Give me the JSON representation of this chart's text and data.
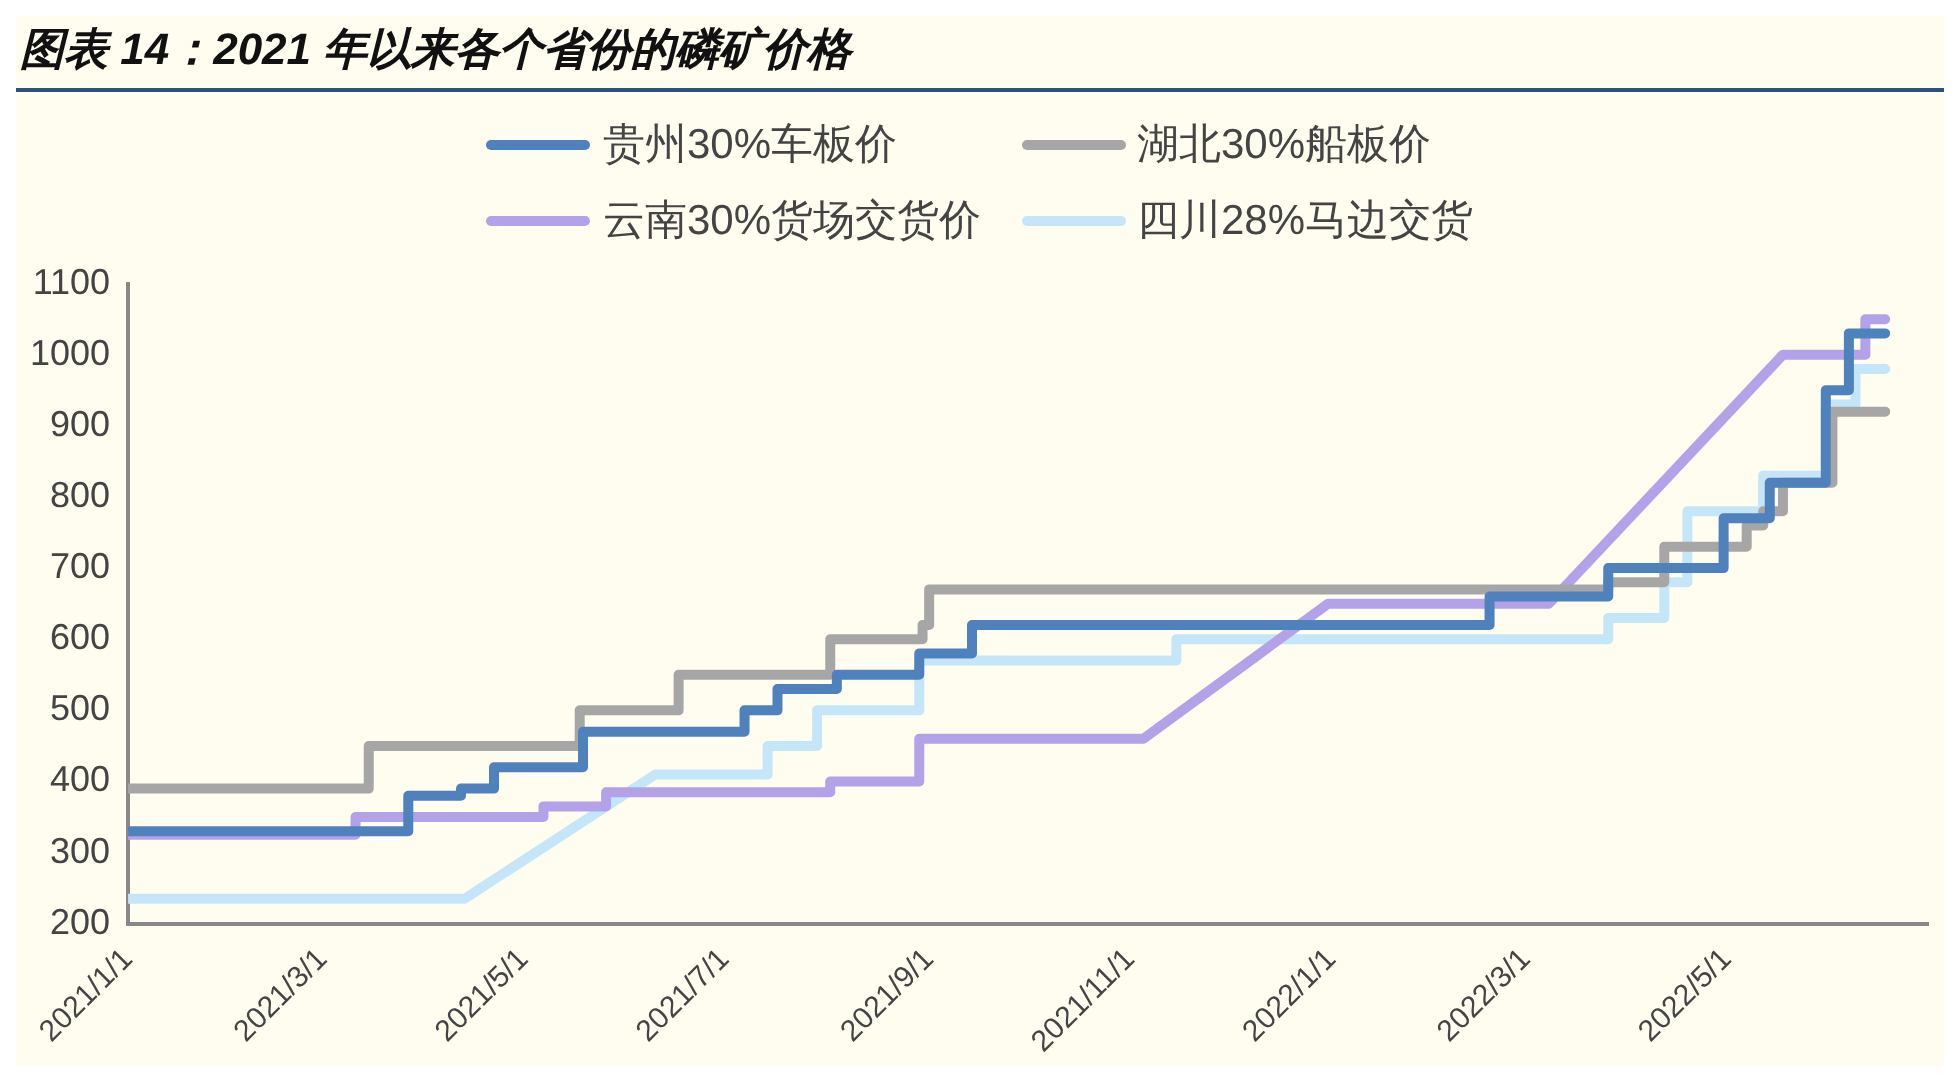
{
  "chart_data": {
    "type": "line",
    "title": "图表 14：2021 年以来各个省份的磷矿价格",
    "series": [
      {
        "name": "贵州30%车板价",
        "color": "#4f81bd",
        "x": [
          "2021-01-01",
          "2021-03-27",
          "2021-03-27",
          "2021-04-12",
          "2021-04-12",
          "2021-04-22",
          "2021-04-22",
          "2021-05-19",
          "2021-05-19",
          "2021-07-07",
          "2021-07-07",
          "2021-07-17",
          "2021-07-17",
          "2021-08-04",
          "2021-08-04",
          "2021-08-29",
          "2021-08-29",
          "2021-09-14",
          "2021-09-14",
          "2022-02-18",
          "2022-02-18",
          "2022-03-26",
          "2022-03-26",
          "2022-04-30",
          "2022-04-30",
          "2022-05-14",
          "2022-05-14",
          "2022-05-31",
          "2022-05-31",
          "2022-06-07",
          "2022-06-07",
          "2022-06-18"
        ],
        "values": [
          330,
          330,
          380,
          380,
          390,
          390,
          420,
          420,
          470,
          470,
          500,
          500,
          530,
          530,
          550,
          550,
          580,
          580,
          620,
          620,
          660,
          660,
          700,
          700,
          770,
          770,
          820,
          820,
          950,
          950,
          1030,
          1030
        ]
      },
      {
        "name": "湖北30%船板价",
        "color": "#a6a6a6",
        "x": [
          "2021-01-01",
          "2021-03-15",
          "2021-03-15",
          "2021-05-18",
          "2021-05-18",
          "2021-06-17",
          "2021-06-17",
          "2021-08-02",
          "2021-08-02",
          "2021-08-30",
          "2021-08-30",
          "2021-09-01",
          "2021-09-01",
          "2022-03-26",
          "2022-03-26",
          "2022-04-12",
          "2022-04-12",
          "2022-05-07",
          "2022-05-07",
          "2022-05-12",
          "2022-05-12",
          "2022-05-18",
          "2022-05-18",
          "2022-06-02",
          "2022-06-02",
          "2022-06-18"
        ],
        "values": [
          390,
          390,
          450,
          450,
          500,
          500,
          550,
          550,
          600,
          600,
          620,
          620,
          670,
          670,
          680,
          680,
          730,
          730,
          760,
          760,
          780,
          780,
          820,
          820,
          920,
          920
        ]
      },
      {
        "name": "云南30%货场交货价",
        "color": "#b3a2e8",
        "x": [
          "2021-01-01",
          "2021-03-11",
          "2021-03-11",
          "2021-05-07",
          "2021-05-07",
          "2021-05-26",
          "2021-05-26",
          "2021-08-02",
          "2021-08-02",
          "2021-08-29",
          "2021-08-29",
          "2021-11-05",
          "2021-12-31",
          "2022-03-08",
          "2022-05-18",
          "2022-06-12",
          "2022-06-12",
          "2022-06-18"
        ],
        "values": [
          325,
          325,
          350,
          350,
          365,
          365,
          385,
          385,
          400,
          400,
          460,
          460,
          650,
          650,
          1000,
          1000,
          1050,
          1050
        ]
      },
      {
        "name": "四川28%马边交货",
        "color": "#c5e6f8",
        "x": [
          "2021-01-01",
          "2021-04-13",
          "2021-06-10",
          "2021-07-14",
          "2021-07-14",
          "2021-07-29",
          "2021-07-29",
          "2021-08-29",
          "2021-08-29",
          "2021-11-15",
          "2021-11-15",
          "2022-03-26",
          "2022-03-26",
          "2022-04-12",
          "2022-04-12",
          "2022-04-19",
          "2022-04-19",
          "2022-05-12",
          "2022-05-12",
          "2022-05-31",
          "2022-05-31",
          "2022-06-09",
          "2022-06-09",
          "2022-06-18"
        ],
        "values": [
          235,
          235,
          410,
          410,
          450,
          450,
          500,
          500,
          570,
          570,
          600,
          600,
          630,
          630,
          680,
          680,
          780,
          780,
          830,
          830,
          930,
          930,
          980,
          980
        ]
      }
    ],
    "xlim": [
      "2021-01-01",
      "2022-07-01"
    ],
    "xticks": [
      {
        "value": "2021-01-01",
        "label": "2021/1/1"
      },
      {
        "value": "2021-03-01",
        "label": "2021/3/1"
      },
      {
        "value": "2021-05-01",
        "label": "2021/5/1"
      },
      {
        "value": "2021-07-01",
        "label": "2021/7/1"
      },
      {
        "value": "2021-09-01",
        "label": "2021/9/1"
      },
      {
        "value": "2021-11-01",
        "label": "2021/11/1"
      },
      {
        "value": "2022-01-01",
        "label": "2022/1/1"
      },
      {
        "value": "2022-03-01",
        "label": "2022/3/1"
      },
      {
        "value": "2022-05-01",
        "label": "2022/5/1"
      }
    ],
    "ylim": [
      200,
      1100
    ],
    "yticks": [
      200,
      300,
      400,
      500,
      600,
      700,
      800,
      900,
      1000,
      1100
    ],
    "grid": false,
    "legend": "top",
    "marker": "none",
    "line_style": "solid"
  }
}
